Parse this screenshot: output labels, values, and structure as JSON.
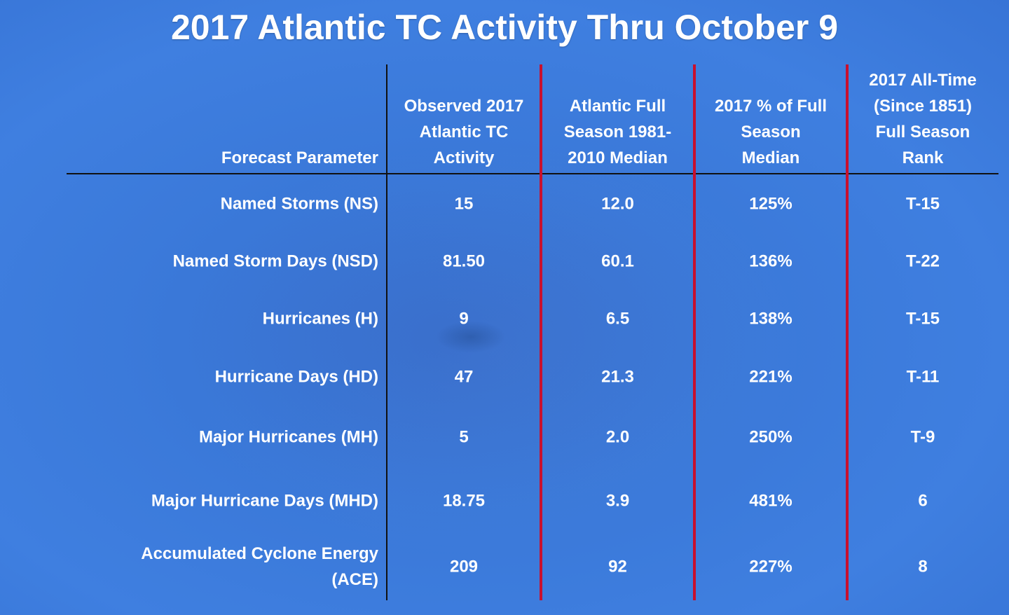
{
  "title": "2017 Atlantic TC Activity Thru October 9",
  "colors": {
    "background": "#3a78d8",
    "separator_red": "#c8102e",
    "separator_black": "#111111",
    "text": "#ffffff"
  },
  "table": {
    "headers": [
      [
        "Forecast Parameter"
      ],
      [
        "Observed 2017",
        "Atlantic TC",
        "Activity"
      ],
      [
        "Atlantic Full",
        "Season 1981-",
        "2010 Median"
      ],
      [
        "2017 % of Full",
        "Season",
        "Median"
      ],
      [
        "2017 All-Time",
        "(Since 1851)",
        "Full Season",
        "Rank"
      ]
    ],
    "rows": [
      {
        "label": [
          "Named Storms (NS)"
        ],
        "values": [
          "15",
          "12.0",
          "125%",
          "T-15"
        ]
      },
      {
        "label": [
          "Named Storm Days (NSD)"
        ],
        "values": [
          "81.50",
          "60.1",
          "136%",
          "T-22"
        ]
      },
      {
        "label": [
          "Hurricanes (H)"
        ],
        "values": [
          "9",
          "6.5",
          "138%",
          "T-15"
        ]
      },
      {
        "label": [
          "Hurricane Days (HD)"
        ],
        "values": [
          "47",
          "21.3",
          "221%",
          "T-11"
        ]
      },
      {
        "label": [
          "Major Hurricanes (MH)"
        ],
        "values": [
          "5",
          "2.0",
          "250%",
          "T-9"
        ]
      },
      {
        "label": [
          "Major Hurricane Days (MHD)"
        ],
        "values": [
          "18.75",
          "3.9",
          "481%",
          "6"
        ]
      },
      {
        "label": [
          "Accumulated Cyclone Energy",
          "(ACE)"
        ],
        "values": [
          "209",
          "92",
          "227%",
          "8"
        ]
      }
    ]
  }
}
